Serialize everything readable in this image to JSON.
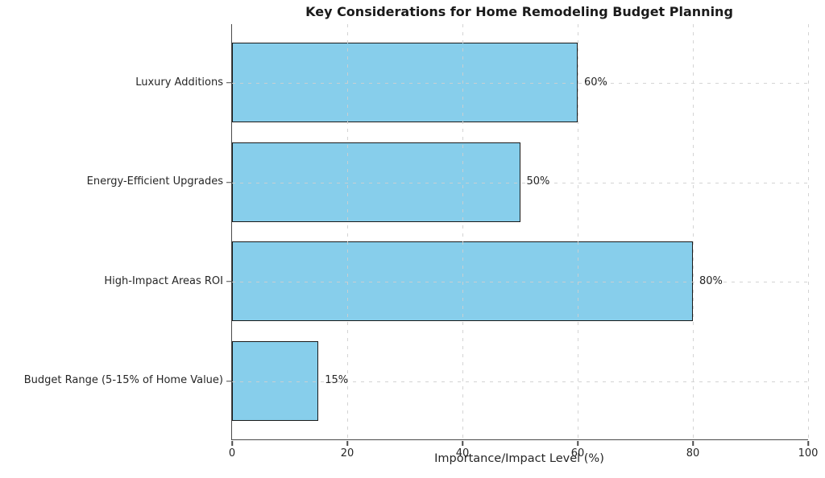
{
  "chart_data": {
    "type": "bar",
    "orientation": "horizontal",
    "title": "Key Considerations for Home Remodeling Budget Planning",
    "xlabel": "Importance/Impact Level (%)",
    "categories": [
      "Luxury Additions",
      "Energy-Efficient Upgrades",
      "High-Impact Areas ROI",
      "Budget Range (5-15% of Home Value)"
    ],
    "values": [
      60,
      50,
      80,
      15
    ],
    "value_labels": [
      "60%",
      "50%",
      "80%",
      "15%"
    ],
    "xlim": [
      0,
      100
    ],
    "xticks": [
      0,
      20,
      40,
      60,
      80,
      100
    ],
    "xtick_labels": [
      "0",
      "20",
      "40",
      "60",
      "80",
      "100"
    ],
    "grid": true,
    "grid_style": "dashed",
    "bar_color": "#87CEEB",
    "bar_edge_color": "#1a1a1a",
    "grid_color": "#cfcfcf",
    "axis_color": "#4a4a4a",
    "text_color": "#262626",
    "background_color": "#ffffff"
  }
}
